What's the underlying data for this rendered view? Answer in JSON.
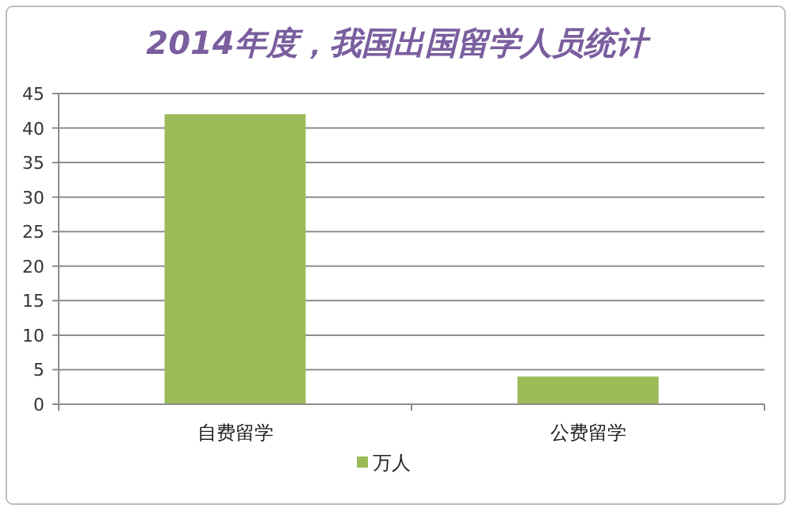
{
  "chart_data": {
    "type": "bar",
    "title": "2014年度，我国出国留学人员统计",
    "categories": [
      "自费留学",
      "公费留学"
    ],
    "series": [
      {
        "name": "万人",
        "color": "#9bbb59",
        "values": [
          42.0,
          4.0
        ]
      }
    ],
    "ylim": [
      0,
      45
    ],
    "yticks": [
      0,
      5,
      10,
      15,
      20,
      25,
      30,
      35,
      40,
      45
    ],
    "grid": "y",
    "legend": "bottom"
  }
}
